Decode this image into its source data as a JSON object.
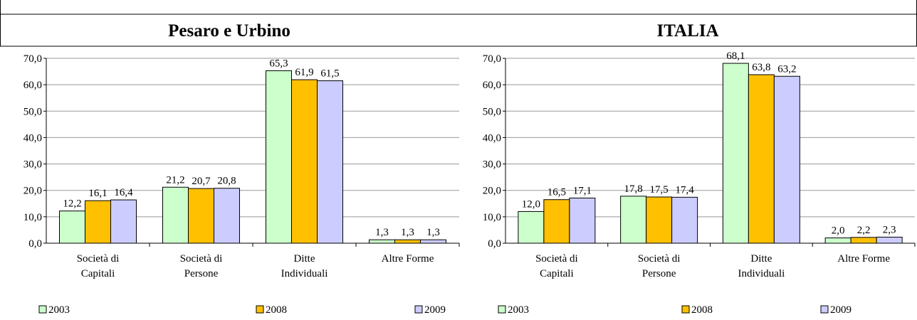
{
  "chart_data": [
    {
      "type": "bar",
      "title": "Pesaro e Urbino",
      "categories": [
        "Società di Capitali",
        "Società di Persone",
        "Ditte Individuali",
        "Altre Forme"
      ],
      "series": [
        {
          "name": "2003",
          "color": "#ccffcc",
          "values": [
            12.2,
            21.2,
            65.3,
            1.3
          ],
          "value_labels": [
            "12,2",
            "21,2",
            "65,3",
            "1,3"
          ]
        },
        {
          "name": "2008",
          "color": "#ffc000",
          "values": [
            16.1,
            20.7,
            61.9,
            1.3
          ],
          "value_labels": [
            "16,1",
            "20,7",
            "61,9",
            "1,3"
          ]
        },
        {
          "name": "2009",
          "color": "#ccccff",
          "values": [
            16.4,
            20.8,
            61.5,
            1.3
          ],
          "value_labels": [
            "16,4",
            "20,8",
            "61,5",
            "1,3"
          ]
        }
      ],
      "ylim": [
        0,
        70
      ],
      "yticks": [
        {
          "value": 0,
          "label": "0,0"
        },
        {
          "value": 10,
          "label": "10,0"
        },
        {
          "value": 20,
          "label": "20,0"
        },
        {
          "value": 30,
          "label": "30,0"
        },
        {
          "value": 40,
          "label": "40,0"
        },
        {
          "value": 50,
          "label": "50,0"
        },
        {
          "value": 60,
          "label": "60,0"
        },
        {
          "value": 70,
          "label": "70,0"
        }
      ],
      "grid": true,
      "legend": "bottom"
    },
    {
      "type": "bar",
      "title": "ITALIA",
      "categories": [
        "Società di Capitali",
        "Società di Persone",
        "Ditte Individuali",
        "Altre Forme"
      ],
      "series": [
        {
          "name": "2003",
          "color": "#ccffcc",
          "values": [
            12.0,
            17.8,
            68.1,
            2.0
          ],
          "value_labels": [
            "12,0",
            "17,8",
            "68,1",
            "2,0"
          ]
        },
        {
          "name": "2008",
          "color": "#ffc000",
          "values": [
            16.5,
            17.5,
            63.8,
            2.2
          ],
          "value_labels": [
            "16,5",
            "17,5",
            "63,8",
            "2,2"
          ]
        },
        {
          "name": "2009",
          "color": "#ccccff",
          "values": [
            17.1,
            17.4,
            63.2,
            2.3
          ],
          "value_labels": [
            "17,1",
            "17,4",
            "63,2",
            "2,3"
          ]
        }
      ],
      "ylim": [
        0,
        70
      ],
      "yticks": [
        {
          "value": 0,
          "label": "0,0"
        },
        {
          "value": 10,
          "label": "10,0"
        },
        {
          "value": 20,
          "label": "20,0"
        },
        {
          "value": 30,
          "label": "30,0"
        },
        {
          "value": 40,
          "label": "40,0"
        },
        {
          "value": 50,
          "label": "50,0"
        },
        {
          "value": 60,
          "label": "60,0"
        },
        {
          "value": 70,
          "label": "70,0"
        }
      ],
      "grid": true,
      "legend": "bottom"
    }
  ]
}
